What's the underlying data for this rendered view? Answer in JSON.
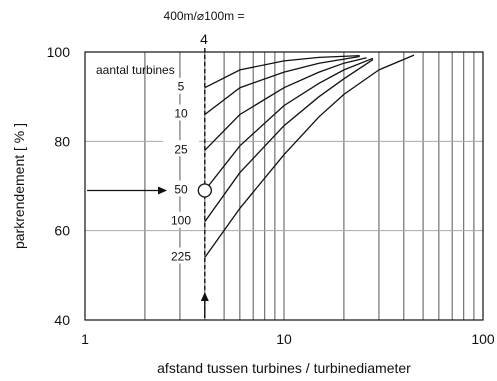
{
  "chart_data": {
    "type": "line",
    "xlabel": "afstand tussen turbines / turbinediameter",
    "ylabel": "parkrendement [ % ]",
    "x_scale": "log",
    "xlim": [
      1,
      100
    ],
    "ylim": [
      40,
      100
    ],
    "x_ticks": [
      1,
      10,
      100
    ],
    "x_tick_labels": [
      "1",
      "10",
      "100"
    ],
    "y_ticks": [
      40,
      60,
      80,
      100
    ],
    "y_tick_labels": [
      "40",
      "60",
      "80",
      "100"
    ],
    "y_gridlines": [
      60,
      80
    ],
    "grid": true,
    "legend_title": "aantal turbines",
    "marker_annotation": {
      "label_line1": "400m/⌀100m =",
      "label_line2": "4",
      "x": 4,
      "highlight_y": 69
    },
    "series": [
      {
        "name": "5",
        "x": [
          4,
          6,
          10,
          15,
          24
        ],
        "y": [
          92,
          96,
          98,
          98.8,
          99.2
        ]
      },
      {
        "name": "10",
        "x": [
          4,
          6,
          10,
          15,
          24
        ],
        "y": [
          86,
          92,
          95.5,
          97.5,
          99
        ]
      },
      {
        "name": "25",
        "x": [
          4,
          6,
          10,
          15,
          20,
          26
        ],
        "y": [
          78,
          86,
          92,
          95.5,
          97.5,
          98.7
        ]
      },
      {
        "name": "50",
        "x": [
          4,
          6,
          10,
          15,
          20,
          28
        ],
        "y": [
          69,
          79,
          88,
          93,
          96,
          98.6
        ]
      },
      {
        "name": "100",
        "x": [
          4,
          6,
          10,
          15,
          20,
          28
        ],
        "y": [
          62,
          73,
          83.5,
          90,
          94,
          98.3
        ]
      },
      {
        "name": "225",
        "x": [
          4,
          6,
          10,
          15,
          20,
          30,
          45
        ],
        "y": [
          54,
          65,
          77,
          85.5,
          90.5,
          96,
          99.3
        ]
      }
    ]
  }
}
